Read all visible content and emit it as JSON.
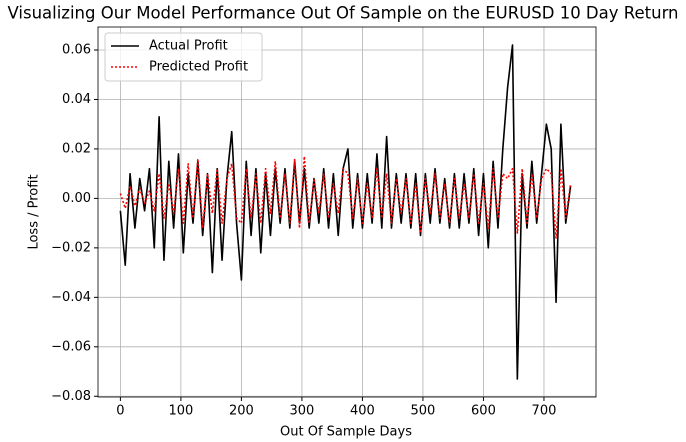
{
  "chart_data": {
    "type": "line",
    "title": "Visualizing Our Model Performance Out Of Sample on the EURUSD 10 Day Return",
    "x_label": "Out Of Sample Days",
    "y_label": "Loss / Profit",
    "x": [
      0,
      8,
      16,
      24,
      32,
      40,
      48,
      56,
      64,
      72,
      80,
      88,
      96,
      104,
      112,
      120,
      128,
      136,
      144,
      152,
      160,
      168,
      176,
      184,
      192,
      200,
      208,
      216,
      224,
      232,
      240,
      248,
      256,
      264,
      272,
      280,
      288,
      296,
      304,
      312,
      320,
      328,
      336,
      344,
      352,
      360,
      368,
      376,
      384,
      392,
      400,
      408,
      416,
      424,
      432,
      440,
      448,
      456,
      464,
      472,
      480,
      488,
      496,
      504,
      512,
      520,
      528,
      536,
      544,
      552,
      560,
      568,
      576,
      584,
      592,
      600,
      608,
      616,
      624,
      632,
      640,
      648,
      656,
      664,
      672,
      680,
      688,
      696,
      704,
      712,
      720,
      728,
      736,
      744
    ],
    "series": [
      {
        "name": "Actual Profit",
        "color": "#000000",
        "linestyle": "solid",
        "values": [
          -0.005,
          -0.027,
          0.01,
          -0.012,
          0.008,
          -0.005,
          0.012,
          -0.02,
          0.033,
          -0.025,
          0.015,
          -0.012,
          0.018,
          -0.022,
          0.01,
          -0.01,
          0.015,
          -0.015,
          0.01,
          -0.03,
          0.012,
          -0.025,
          0.008,
          0.027,
          -0.01,
          -0.033,
          0.015,
          -0.015,
          0.012,
          -0.022,
          0.01,
          -0.015,
          0.012,
          -0.01,
          0.012,
          -0.012,
          0.015,
          -0.01,
          0.012,
          -0.012,
          0.008,
          -0.01,
          0.012,
          -0.012,
          0.01,
          -0.015,
          0.012,
          0.02,
          -0.012,
          0.01,
          -0.012,
          0.01,
          -0.01,
          0.018,
          -0.012,
          0.025,
          -0.012,
          0.01,
          -0.01,
          0.01,
          -0.012,
          0.01,
          -0.015,
          0.01,
          -0.01,
          0.012,
          -0.01,
          0.008,
          -0.012,
          0.01,
          -0.012,
          0.01,
          -0.01,
          0.012,
          -0.015,
          0.01,
          -0.02,
          0.015,
          -0.012,
          0.02,
          0.045,
          0.062,
          -0.073,
          0.01,
          -0.012,
          0.015,
          -0.01,
          0.01,
          0.03,
          0.02,
          -0.042,
          0.03,
          -0.01,
          0.005
        ]
      },
      {
        "name": "Predicted Profit",
        "color": "#ff0000",
        "linestyle": "dotted",
        "values": [
          0.002,
          -0.004,
          0.005,
          -0.003,
          0.004,
          -0.002,
          0.003,
          -0.005,
          0.01,
          -0.008,
          0.006,
          -0.006,
          0.012,
          -0.01,
          0.014,
          -0.008,
          0.016,
          -0.012,
          0.01,
          -0.006,
          0.012,
          -0.01,
          0.008,
          0.014,
          -0.008,
          -0.01,
          0.012,
          -0.008,
          0.01,
          -0.01,
          0.012,
          -0.006,
          0.015,
          -0.008,
          0.01,
          -0.01,
          0.016,
          -0.012,
          0.017,
          -0.01,
          0.008,
          -0.006,
          0.01,
          -0.008,
          0.006,
          -0.006,
          0.012,
          0.01,
          -0.008,
          0.008,
          -0.01,
          0.006,
          -0.008,
          0.012,
          -0.008,
          0.01,
          -0.01,
          0.008,
          -0.006,
          0.008,
          -0.01,
          0.006,
          -0.014,
          0.008,
          -0.006,
          0.01,
          -0.008,
          0.006,
          -0.01,
          0.008,
          -0.008,
          0.006,
          -0.008,
          0.01,
          -0.01,
          0.006,
          -0.012,
          0.012,
          -0.008,
          0.01,
          0.008,
          0.012,
          -0.014,
          0.012,
          -0.01,
          0.01,
          -0.008,
          0.008,
          0.012,
          0.01,
          -0.016,
          0.012,
          -0.008,
          0.006
        ]
      }
    ],
    "xlim": [
      -37,
      786
    ],
    "ylim": [
      -0.0803,
      0.0693
    ],
    "xticks": [
      0,
      100,
      200,
      300,
      400,
      500,
      600,
      700
    ],
    "yticks": [
      {
        "value": -0.08,
        "label": "−0.08"
      },
      {
        "value": -0.06,
        "label": "−0.06"
      },
      {
        "value": -0.04,
        "label": "−0.04"
      },
      {
        "value": -0.02,
        "label": "−0.02"
      },
      {
        "value": 0,
        "label": "0.00"
      },
      {
        "value": 0.02,
        "label": "0.02"
      },
      {
        "value": 0.04,
        "label": "0.04"
      },
      {
        "value": 0.06,
        "label": "0.06"
      }
    ],
    "grid": true,
    "legend": "upper left"
  }
}
